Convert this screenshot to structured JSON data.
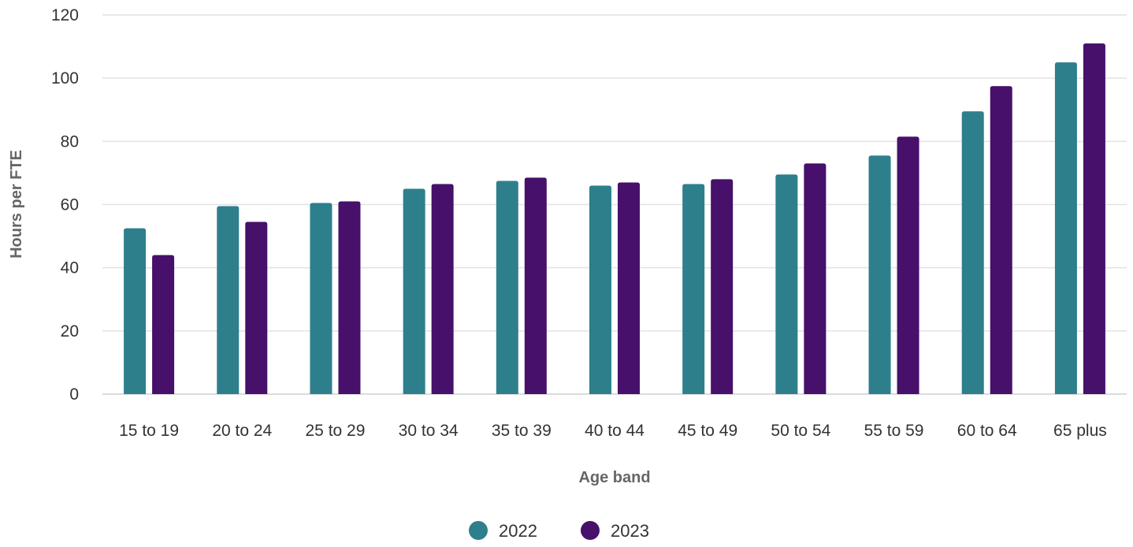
{
  "chart_data": {
    "type": "bar",
    "title": "",
    "xlabel": "Age band",
    "ylabel": "Hours per FTE",
    "ylim": [
      0,
      120
    ],
    "yticks": [
      0,
      20,
      40,
      60,
      80,
      100,
      120
    ],
    "grid": true,
    "legend_position": "bottom-center",
    "categories": [
      "15 to 19",
      "20 to 24",
      "25 to 29",
      "30 to 34",
      "35 to 39",
      "40 to 44",
      "45 to 49",
      "50 to 54",
      "55 to 59",
      "60 to 64",
      "65 plus"
    ],
    "series": [
      {
        "name": "2022",
        "color": "#2e7f8c",
        "values": [
          52.5,
          59.5,
          60.5,
          65,
          67.5,
          66,
          66.5,
          69.5,
          75.5,
          89.5,
          105
        ]
      },
      {
        "name": "2023",
        "color": "#46106b",
        "values": [
          44,
          54.5,
          61,
          66.5,
          68.5,
          67,
          68,
          73,
          81.5,
          97.5,
          111
        ]
      }
    ]
  }
}
